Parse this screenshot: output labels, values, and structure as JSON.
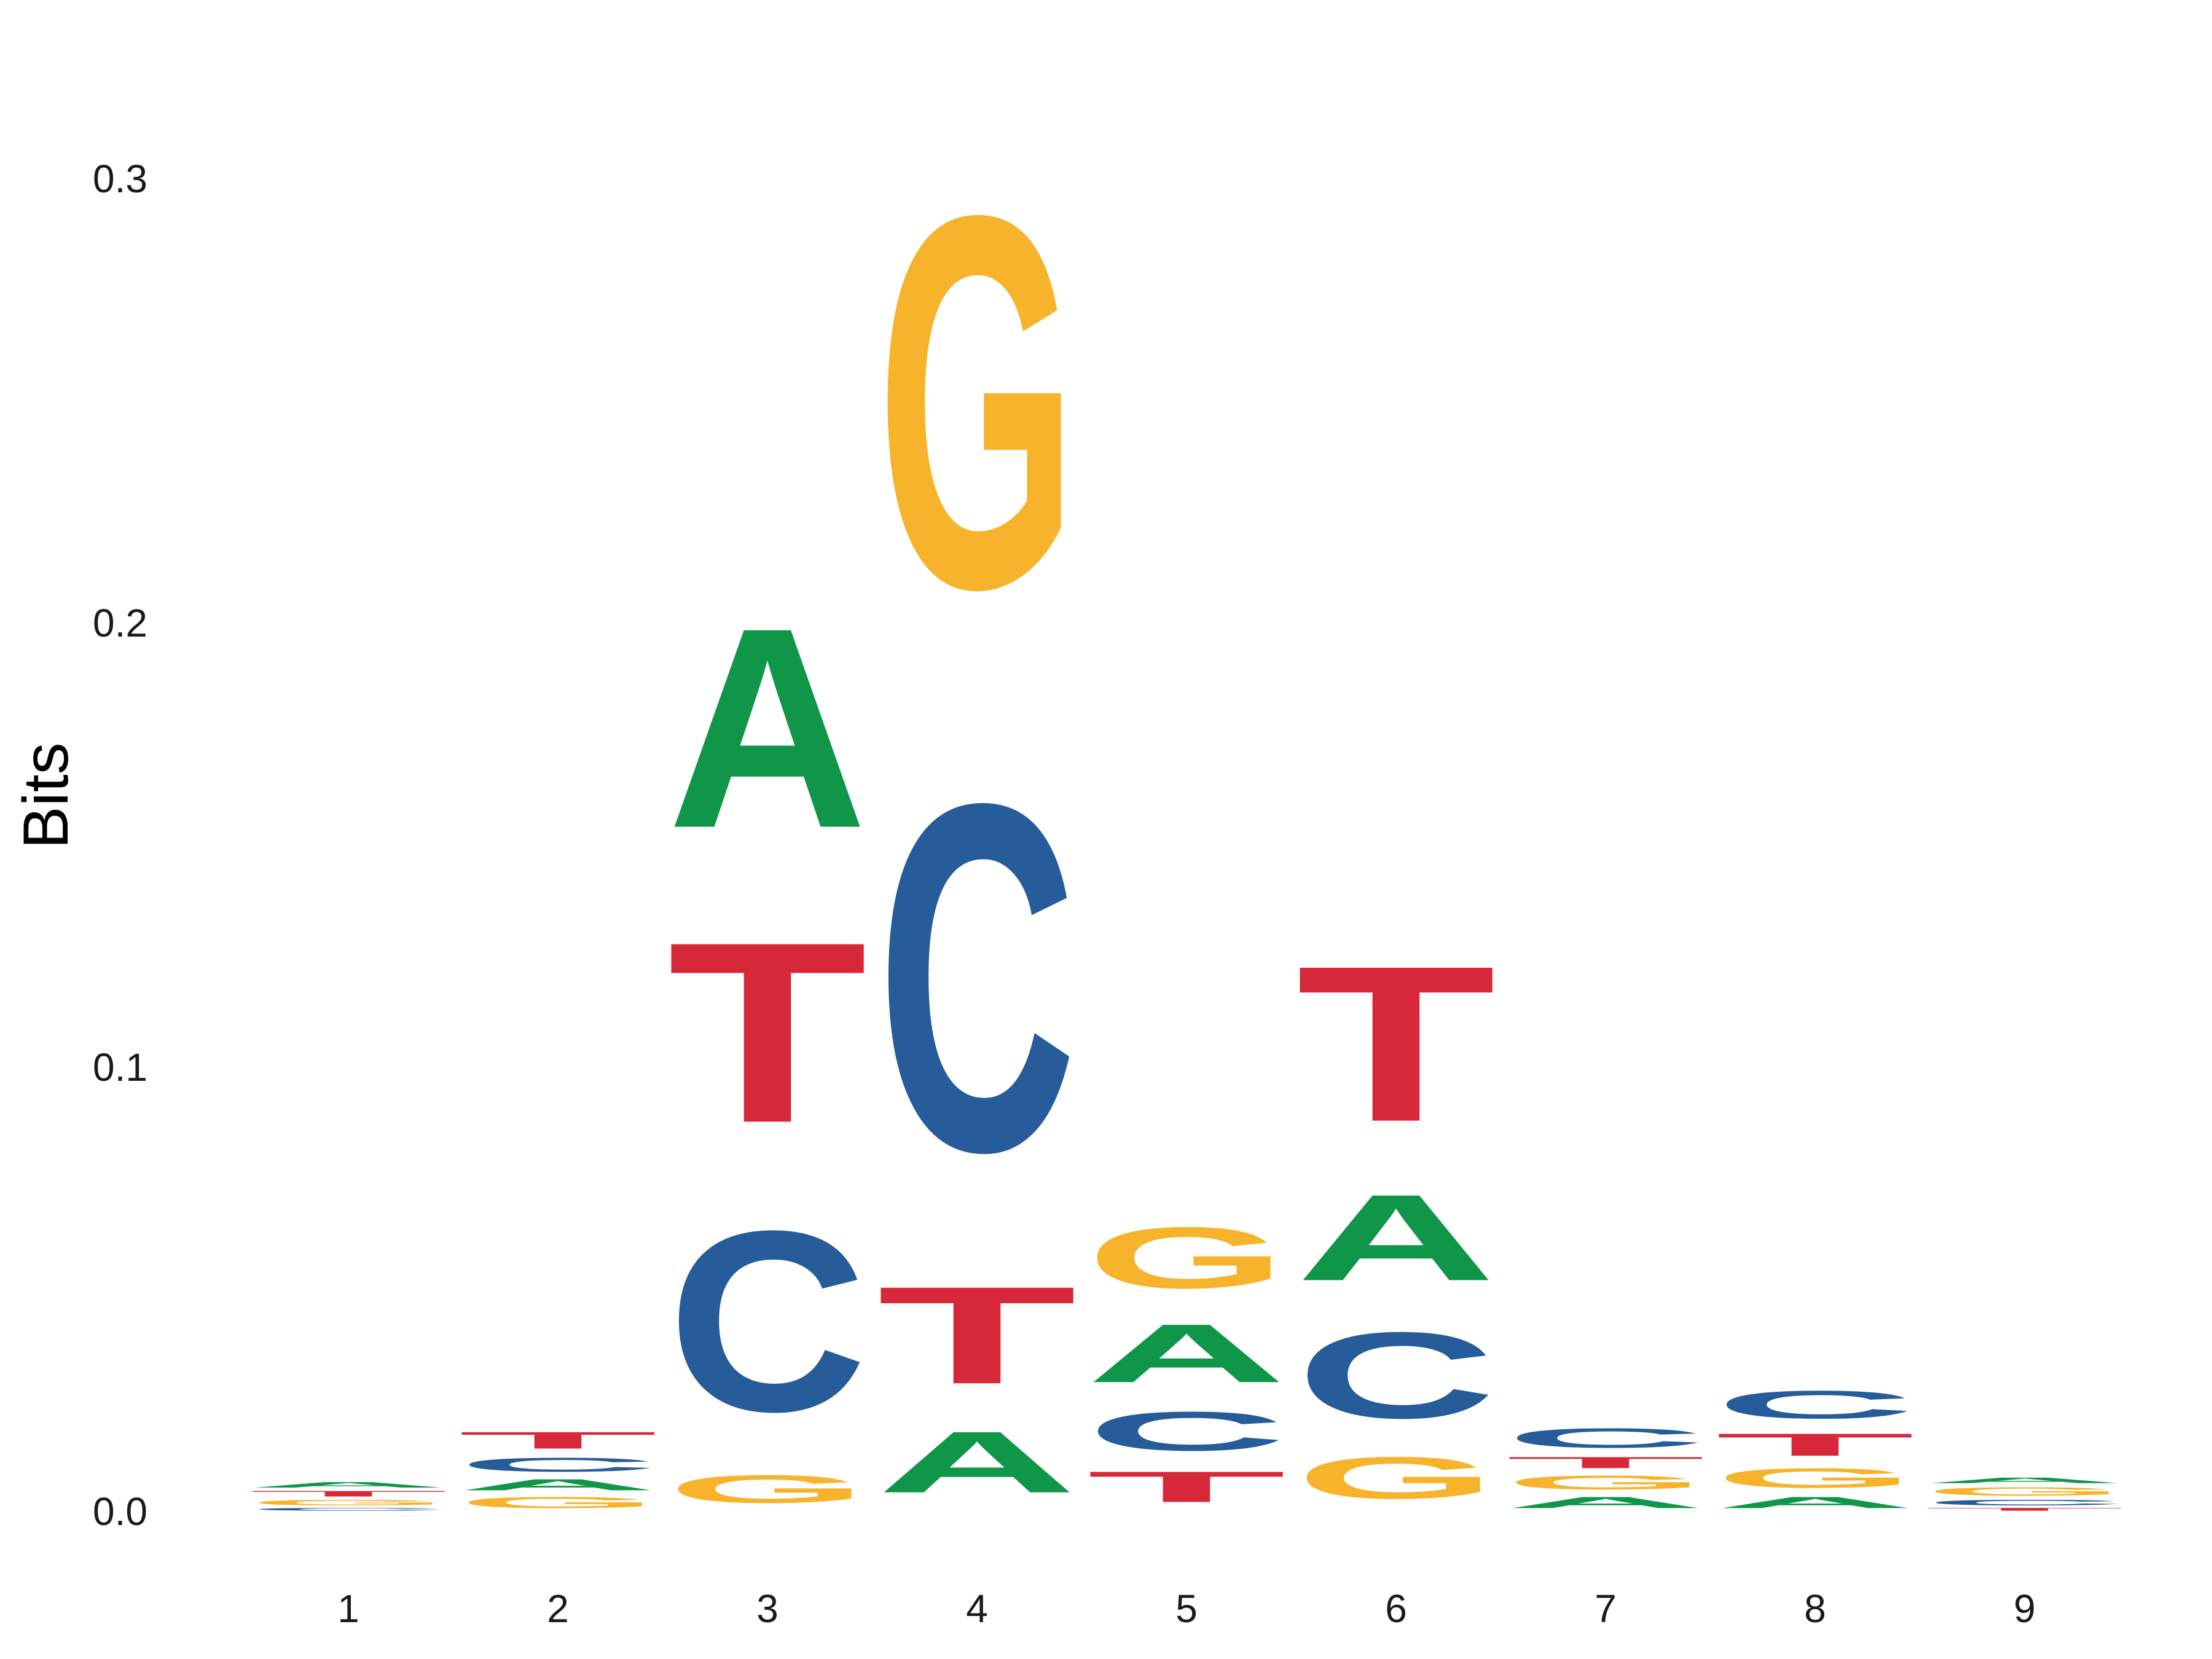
{
  "chart_data": {
    "type": "sequence-logo",
    "ylabel": "Bits",
    "ylim": [
      0,
      0.32
    ],
    "y_ticks": [
      "0.0",
      "0.1",
      "0.2",
      "0.3"
    ],
    "x_ticks": [
      "1",
      "2",
      "3",
      "4",
      "5",
      "6",
      "7",
      "8",
      "9"
    ],
    "grid": false,
    "colors": {
      "A": "#109648",
      "C": "#255C99",
      "G": "#F7B32B",
      "T": "#D62839"
    },
    "positions": [
      {
        "position": "1",
        "stack": [
          {
            "letter": "C",
            "bits": 0.001
          },
          {
            "letter": "G",
            "bits": 0.002
          },
          {
            "letter": "T",
            "bits": 0.002
          },
          {
            "letter": "A",
            "bits": 0.002
          }
        ]
      },
      {
        "position": "2",
        "stack": [
          {
            "letter": "G",
            "bits": 0.004
          },
          {
            "letter": "A",
            "bits": 0.004
          },
          {
            "letter": "C",
            "bits": 0.005
          },
          {
            "letter": "T",
            "bits": 0.006
          }
        ]
      },
      {
        "position": "3",
        "stack": [
          {
            "letter": "G",
            "bits": 0.01
          },
          {
            "letter": "C",
            "bits": 0.065
          },
          {
            "letter": "T",
            "bits": 0.065
          },
          {
            "letter": "A",
            "bits": 0.072
          }
        ]
      },
      {
        "position": "4",
        "stack": [
          {
            "letter": "A",
            "bits": 0.022
          },
          {
            "letter": "T",
            "bits": 0.035
          },
          {
            "letter": "C",
            "bits": 0.125
          },
          {
            "letter": "G",
            "bits": 0.134
          }
        ]
      },
      {
        "position": "5",
        "stack": [
          {
            "letter": "T",
            "bits": 0.011
          },
          {
            "letter": "C",
            "bits": 0.014
          },
          {
            "letter": "A",
            "bits": 0.021
          },
          {
            "letter": "G",
            "bits": 0.022
          }
        ]
      },
      {
        "position": "6",
        "stack": [
          {
            "letter": "G",
            "bits": 0.015
          },
          {
            "letter": "C",
            "bits": 0.031
          },
          {
            "letter": "A",
            "bits": 0.031
          },
          {
            "letter": "T",
            "bits": 0.056
          }
        ]
      },
      {
        "position": "7",
        "stack": [
          {
            "letter": "A",
            "bits": 0.004
          },
          {
            "letter": "G",
            "bits": 0.005
          },
          {
            "letter": "T",
            "bits": 0.004
          },
          {
            "letter": "C",
            "bits": 0.007
          }
        ]
      },
      {
        "position": "8",
        "stack": [
          {
            "letter": "A",
            "bits": 0.004
          },
          {
            "letter": "G",
            "bits": 0.007
          },
          {
            "letter": "T",
            "bits": 0.008
          },
          {
            "letter": "C",
            "bits": 0.01
          }
        ]
      },
      {
        "position": "9",
        "stack": [
          {
            "letter": "T",
            "bits": 0.001
          },
          {
            "letter": "C",
            "bits": 0.002
          },
          {
            "letter": "G",
            "bits": 0.003
          },
          {
            "letter": "A",
            "bits": 0.002
          }
        ]
      }
    ]
  }
}
